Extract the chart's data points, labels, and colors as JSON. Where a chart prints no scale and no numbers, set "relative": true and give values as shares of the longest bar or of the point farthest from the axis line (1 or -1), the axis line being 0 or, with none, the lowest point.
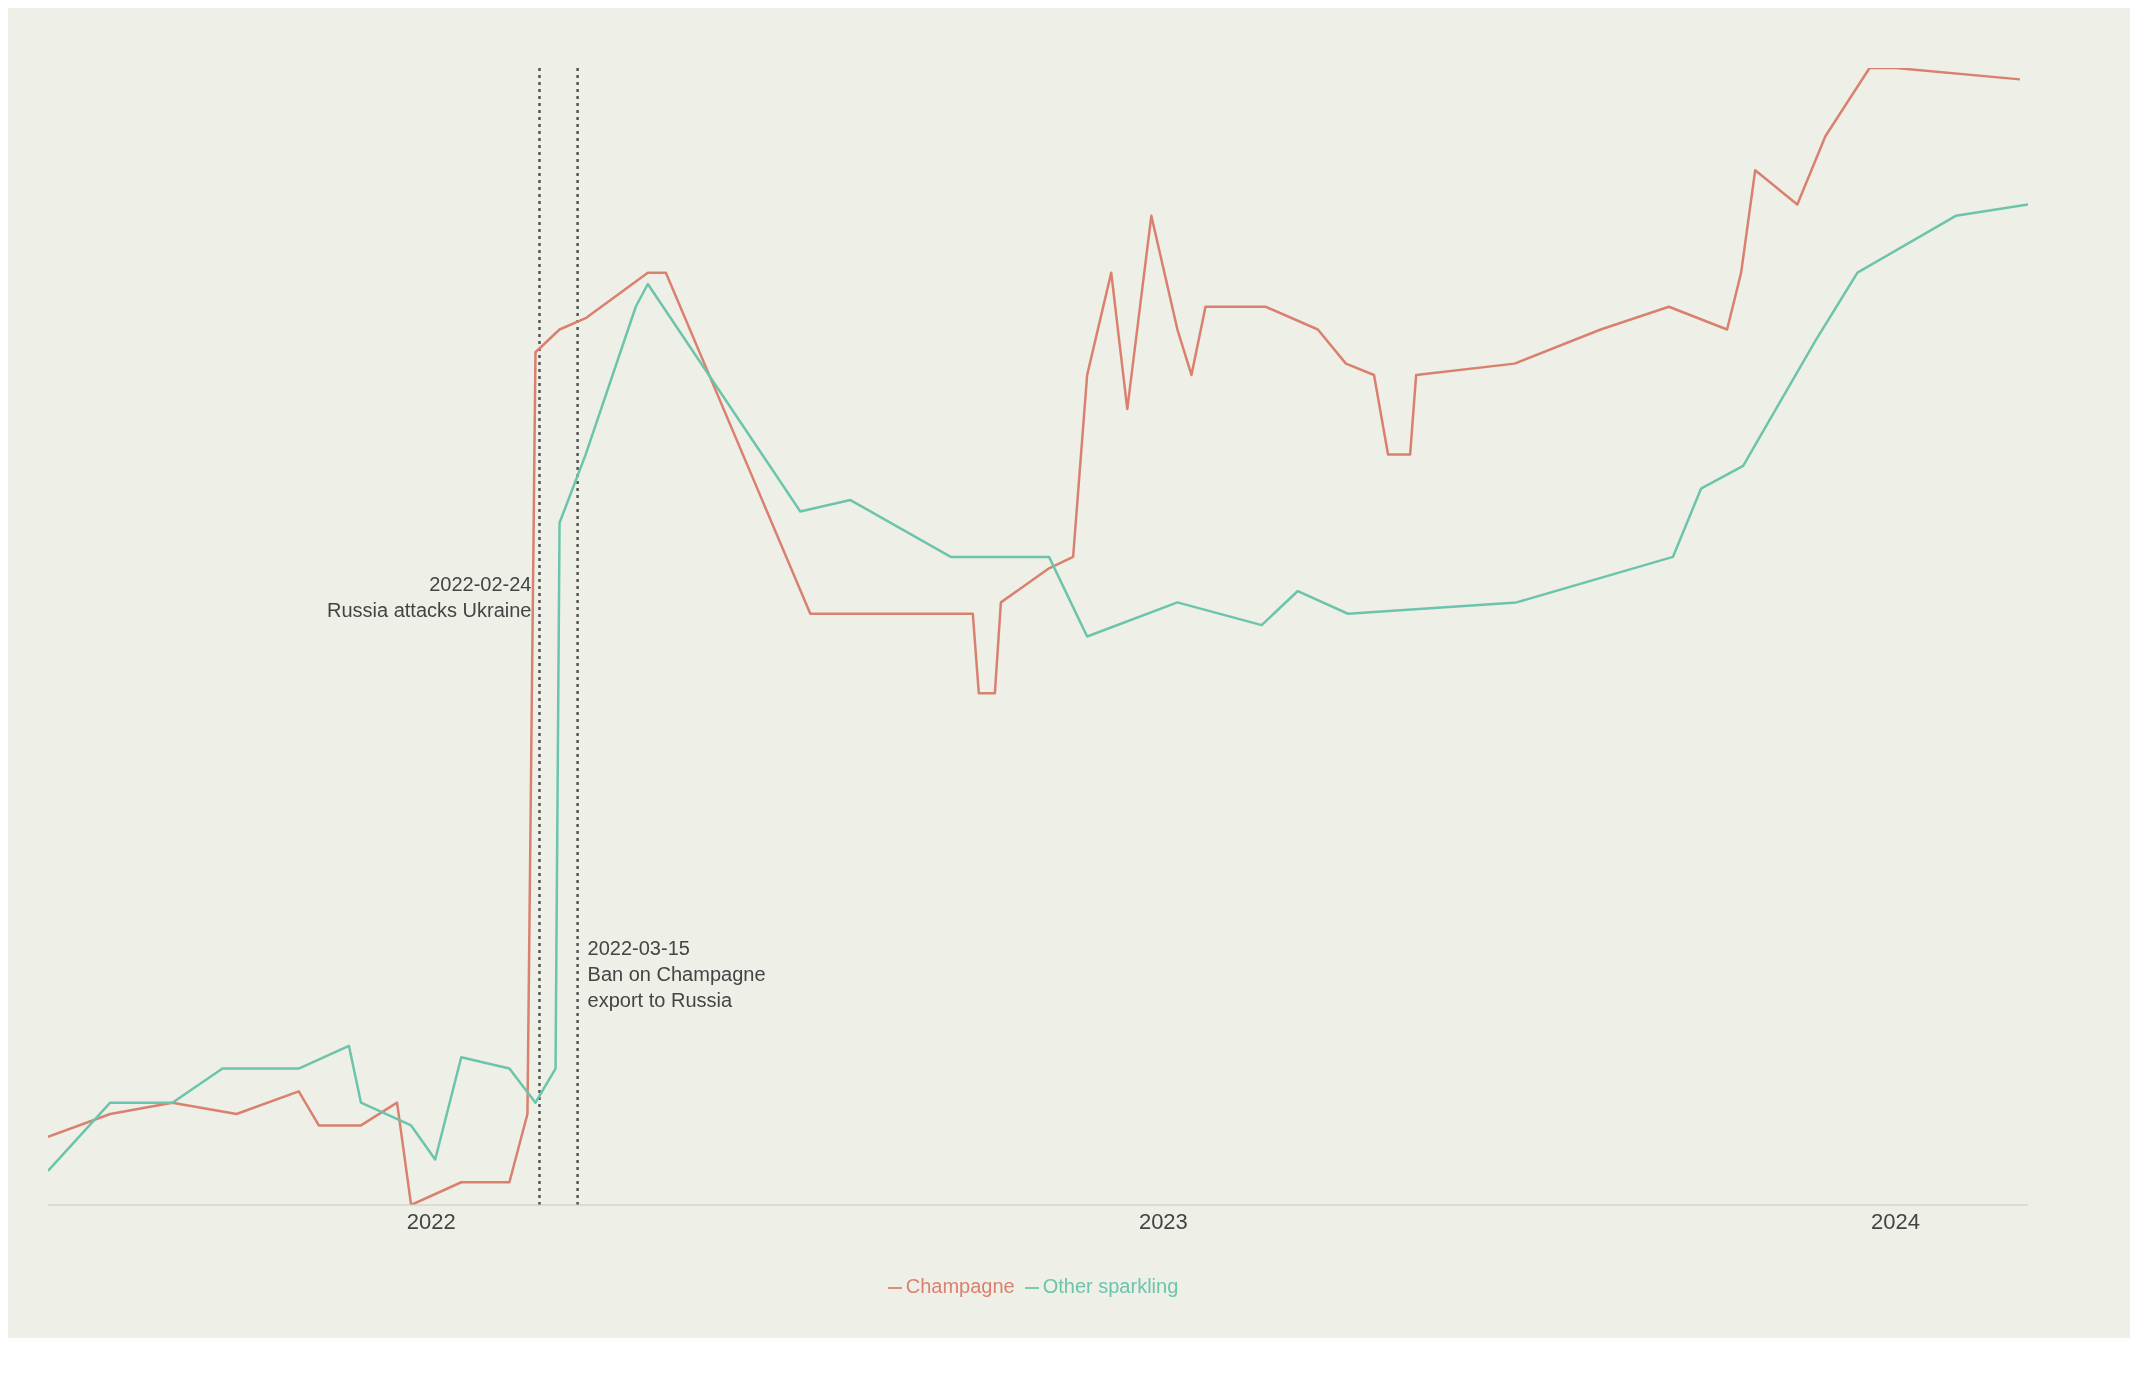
{
  "chart_data": {
    "type": "line",
    "relative": true,
    "xlim": [
      "2021-06-24",
      "2024-03-07"
    ],
    "xticks": [
      {
        "value": "2022-01-01",
        "label": "2022"
      },
      {
        "value": "2023-01-01",
        "label": "2023"
      },
      {
        "value": "2024-01-01",
        "label": "2024"
      }
    ],
    "grid": false,
    "legend": "bottom",
    "line_style": "solid",
    "marker": "none",
    "series": [
      {
        "name": "Champagne",
        "color": "#d9806e",
        "x": [
          "2021-06-24",
          "2021-07-25",
          "2021-08-25",
          "2021-09-26",
          "2021-10-27",
          "2021-11-06",
          "2021-11-27",
          "2021-12-15",
          "2021-12-22",
          "2022-01-16",
          "2022-02-09",
          "2022-02-18",
          "2022-02-22",
          "2022-03-06",
          "2022-03-19",
          "2022-04-19",
          "2022-04-28",
          "2022-07-09",
          "2022-09-03",
          "2022-09-28",
          "2022-10-01",
          "2022-10-09",
          "2022-10-12",
          "2022-11-05",
          "2022-11-17",
          "2022-11-24",
          "2022-12-06",
          "2022-12-14",
          "2022-12-26",
          "2023-01-08",
          "2023-01-15",
          "2023-01-22",
          "2023-02-21",
          "2023-03-19",
          "2023-04-02",
          "2023-04-16",
          "2023-04-23",
          "2023-05-04",
          "2023-05-07",
          "2023-06-25",
          "2023-08-07",
          "2023-09-10",
          "2023-10-09",
          "2023-10-16",
          "2023-10-23",
          "2023-11-13",
          "2023-11-27",
          "2023-12-19",
          "2024-01-01",
          "2024-03-03"
        ],
        "values": [
          0.06,
          0.08,
          0.09,
          0.08,
          0.1,
          0.07,
          0.07,
          0.09,
          0,
          0.02,
          0.02,
          0.08,
          0.75,
          0.77,
          0.78,
          0.82,
          0.82,
          0.52,
          0.52,
          0.52,
          0.45,
          0.45,
          0.53,
          0.56,
          0.57,
          0.73,
          0.82,
          0.7,
          0.87,
          0.77,
          0.73,
          0.79,
          0.79,
          0.77,
          0.74,
          0.73,
          0.66,
          0.66,
          0.73,
          0.74,
          0.77,
          0.79,
          0.77,
          0.82,
          0.91,
          0.88,
          0.94,
          1,
          1,
          0.99
        ]
      },
      {
        "name": "Other sparkling",
        "color": "#6cc4ab",
        "x": [
          "2021-06-24",
          "2021-07-25",
          "2021-08-25",
          "2021-09-19",
          "2021-10-27",
          "2021-11-21",
          "2021-11-27",
          "2021-12-22",
          "2022-01-03",
          "2022-01-16",
          "2022-02-09",
          "2022-02-22",
          "2022-03-04",
          "2022-03-06",
          "2022-03-19",
          "2022-04-13",
          "2022-04-19",
          "2022-07-04",
          "2022-07-29",
          "2022-09-17",
          "2022-11-05",
          "2022-11-24",
          "2023-01-08",
          "2023-02-19",
          "2023-03-09",
          "2023-04-03",
          "2023-06-26",
          "2023-09-12",
          "2023-09-26",
          "2023-10-17",
          "2023-11-22",
          "2023-12-13",
          "2024-01-31",
          "2024-03-07"
        ],
        "values": [
          0.03,
          0.09,
          0.09,
          0.12,
          0.12,
          0.14,
          0.09,
          0.07,
          0.04,
          0.13,
          0.12,
          0.09,
          0.12,
          0.6,
          0.66,
          0.79,
          0.81,
          0.61,
          0.62,
          0.57,
          0.57,
          0.5,
          0.53,
          0.51,
          0.54,
          0.52,
          0.53,
          0.57,
          0.63,
          0.65,
          0.76,
          0.82,
          0.87,
          0.88
        ]
      }
    ],
    "ref_lines": [
      {
        "axis": "x",
        "value": "2022-02-24",
        "label": "2022-02-24\nRussia attacks Ukraine",
        "line_style": "dotted",
        "color": "#555555"
      },
      {
        "axis": "x",
        "value": "2022-03-15",
        "label": "2022-03-15\nBan on Champagne\nexport to Russia",
        "line_style": "dotted",
        "color": "#555555"
      }
    ]
  }
}
